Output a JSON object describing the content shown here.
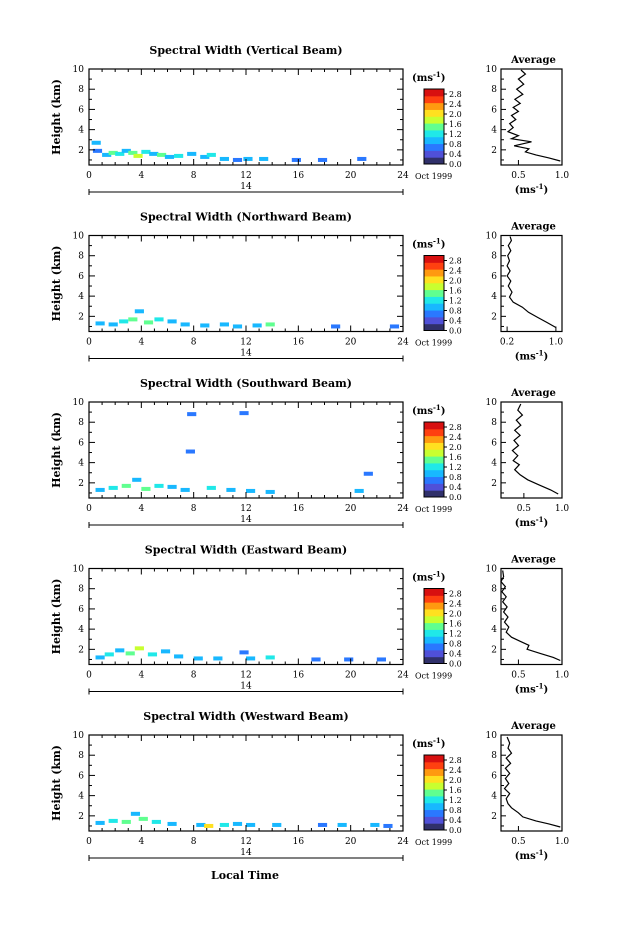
{
  "figure": {
    "xlabel_bottom": "Local Time",
    "date_label": "Oct 1999",
    "day_label": "14",
    "units_label": "(ms",
    "units_exp": "-1",
    "units_close": ")",
    "ylabel": "Height (km)",
    "avg_title": "Average",
    "colorbar_ticks": [
      "0.0",
      "0.4",
      "0.8",
      "1.2",
      "1.6",
      "2.0",
      "2.4",
      "2.8"
    ],
    "colorbar_colors": [
      "#30306a",
      "#5050d8",
      "#2a78ff",
      "#18b8ff",
      "#20e8e8",
      "#60ff90",
      "#c8ff30",
      "#ffe020",
      "#ff9a10",
      "#ff4010",
      "#d81010"
    ]
  },
  "chart_data": [
    {
      "type": "heatmap",
      "title": "Spectral Width (Vertical Beam)",
      "xlabel": "Local Time",
      "ylabel": "Height (km)",
      "xlim": [
        0,
        24
      ],
      "ylim": [
        0.5,
        10
      ],
      "xticks": [
        0,
        4,
        8,
        12,
        16,
        20,
        24
      ],
      "yticks": [
        2,
        4,
        6,
        8,
        10
      ],
      "value_range": [
        0.0,
        2.8
      ],
      "cells": [
        {
          "t": 0.2,
          "h": 2.6,
          "v": 0.8
        },
        {
          "t": 0.3,
          "h": 1.8,
          "v": 0.7
        },
        {
          "t": 1.0,
          "h": 1.4,
          "v": 1.0
        },
        {
          "t": 1.5,
          "h": 1.6,
          "v": 1.3
        },
        {
          "t": 2.0,
          "h": 1.5,
          "v": 1.1
        },
        {
          "t": 2.5,
          "h": 1.8,
          "v": 0.9
        },
        {
          "t": 3.0,
          "h": 1.6,
          "v": 1.4
        },
        {
          "t": 3.4,
          "h": 1.3,
          "v": 1.6
        },
        {
          "t": 4.0,
          "h": 1.7,
          "v": 1.2
        },
        {
          "t": 4.6,
          "h": 1.5,
          "v": 1.0
        },
        {
          "t": 5.2,
          "h": 1.4,
          "v": 1.5
        },
        {
          "t": 5.8,
          "h": 1.2,
          "v": 0.9
        },
        {
          "t": 6.5,
          "h": 1.3,
          "v": 1.1
        },
        {
          "t": 7.5,
          "h": 1.5,
          "v": 0.8
        },
        {
          "t": 8.5,
          "h": 1.2,
          "v": 0.9
        },
        {
          "t": 9.0,
          "h": 1.4,
          "v": 1.2
        },
        {
          "t": 10.0,
          "h": 1.0,
          "v": 1.0
        },
        {
          "t": 11.0,
          "h": 0.9,
          "v": 0.7
        },
        {
          "t": 11.8,
          "h": 1.0,
          "v": 0.9
        },
        {
          "t": 13.0,
          "h": 1.0,
          "v": 0.8
        },
        {
          "t": 15.5,
          "h": 0.9,
          "v": 0.6
        },
        {
          "t": 17.5,
          "h": 0.9,
          "v": 0.6
        },
        {
          "t": 20.5,
          "h": 1.0,
          "v": 0.7
        }
      ],
      "average": {
        "xlim": [
          0.3,
          1.0
        ],
        "xticks": [
          0.5,
          1.0
        ],
        "xlabel": "(ms-1)",
        "ylim": [
          0.5,
          10
        ],
        "profile": [
          [
            0.98,
            0.9
          ],
          [
            0.85,
            1.2
          ],
          [
            0.7,
            1.5
          ],
          [
            0.58,
            1.8
          ],
          [
            0.62,
            2.1
          ],
          [
            0.45,
            2.4
          ],
          [
            0.65,
            2.8
          ],
          [
            0.42,
            3.1
          ],
          [
            0.5,
            3.4
          ],
          [
            0.38,
            3.8
          ],
          [
            0.44,
            4.2
          ],
          [
            0.4,
            4.6
          ],
          [
            0.47,
            5.0
          ],
          [
            0.42,
            5.4
          ],
          [
            0.5,
            5.8
          ],
          [
            0.44,
            6.2
          ],
          [
            0.52,
            6.6
          ],
          [
            0.46,
            7.0
          ],
          [
            0.55,
            7.5
          ],
          [
            0.48,
            8.0
          ],
          [
            0.56,
            8.5
          ],
          [
            0.5,
            9.0
          ],
          [
            0.58,
            9.5
          ],
          [
            0.53,
            9.9
          ]
        ]
      }
    },
    {
      "type": "heatmap",
      "title": "Spectral Width (Northward Beam)",
      "xlabel": "Local Time",
      "ylabel": "Height (km)",
      "xlim": [
        0,
        24
      ],
      "ylim": [
        0.5,
        10
      ],
      "xticks": [
        0,
        4,
        8,
        12,
        16,
        20,
        24
      ],
      "yticks": [
        2,
        4,
        6,
        8,
        10
      ],
      "value_range": [
        0.0,
        2.8
      ],
      "cells": [
        {
          "t": 0.5,
          "h": 1.2,
          "v": 0.9
        },
        {
          "t": 1.5,
          "h": 1.1,
          "v": 1.0
        },
        {
          "t": 2.3,
          "h": 1.4,
          "v": 1.2
        },
        {
          "t": 3.0,
          "h": 1.6,
          "v": 1.5
        },
        {
          "t": 3.5,
          "h": 2.4,
          "v": 0.9
        },
        {
          "t": 4.2,
          "h": 1.3,
          "v": 1.3
        },
        {
          "t": 5.0,
          "h": 1.6,
          "v": 1.1
        },
        {
          "t": 6.0,
          "h": 1.4,
          "v": 0.9
        },
        {
          "t": 7.0,
          "h": 1.1,
          "v": 0.8
        },
        {
          "t": 8.5,
          "h": 1.0,
          "v": 0.9
        },
        {
          "t": 10.0,
          "h": 1.1,
          "v": 1.0
        },
        {
          "t": 11.0,
          "h": 0.9,
          "v": 0.8
        },
        {
          "t": 12.5,
          "h": 1.0,
          "v": 0.9
        },
        {
          "t": 13.5,
          "h": 1.1,
          "v": 1.3
        },
        {
          "t": 18.5,
          "h": 0.9,
          "v": 0.6
        },
        {
          "t": 23.0,
          "h": 0.9,
          "v": 0.6
        }
      ],
      "average": {
        "xlim": [
          0.1,
          1.1
        ],
        "xticks": [
          0.2,
          1.0
        ],
        "xlabel": "(ms-1)",
        "ylim": [
          0.5,
          10
        ],
        "profile": [
          [
            1.0,
            0.9
          ],
          [
            0.85,
            1.4
          ],
          [
            0.7,
            1.9
          ],
          [
            0.55,
            2.4
          ],
          [
            0.45,
            2.9
          ],
          [
            0.3,
            3.4
          ],
          [
            0.24,
            3.9
          ],
          [
            0.28,
            4.4
          ],
          [
            0.22,
            5.0
          ],
          [
            0.26,
            5.5
          ],
          [
            0.2,
            6.0
          ],
          [
            0.25,
            6.5
          ],
          [
            0.2,
            7.0
          ],
          [
            0.24,
            7.5
          ],
          [
            0.21,
            8.0
          ],
          [
            0.26,
            8.5
          ],
          [
            0.22,
            9.0
          ],
          [
            0.27,
            9.5
          ],
          [
            0.25,
            9.9
          ]
        ]
      }
    },
    {
      "type": "heatmap",
      "title": "Spectral Width (Southward Beam)",
      "xlabel": "Local Time",
      "ylabel": "Height (km)",
      "xlim": [
        0,
        24
      ],
      "ylim": [
        0.5,
        10
      ],
      "xticks": [
        0,
        4,
        8,
        12,
        16,
        20,
        24
      ],
      "yticks": [
        2,
        4,
        6,
        8,
        10
      ],
      "value_range": [
        0.0,
        2.8
      ],
      "cells": [
        {
          "t": 0.5,
          "h": 1.2,
          "v": 0.9
        },
        {
          "t": 1.5,
          "h": 1.4,
          "v": 1.1
        },
        {
          "t": 2.5,
          "h": 1.6,
          "v": 1.3
        },
        {
          "t": 3.3,
          "h": 2.2,
          "v": 1.0
        },
        {
          "t": 4.0,
          "h": 1.3,
          "v": 1.5
        },
        {
          "t": 5.0,
          "h": 1.6,
          "v": 1.2
        },
        {
          "t": 6.0,
          "h": 1.5,
          "v": 1.0
        },
        {
          "t": 7.0,
          "h": 1.2,
          "v": 0.9
        },
        {
          "t": 7.5,
          "h": 8.7,
          "v": 0.7
        },
        {
          "t": 7.4,
          "h": 5.0,
          "v": 0.6
        },
        {
          "t": 9.0,
          "h": 1.4,
          "v": 1.1
        },
        {
          "t": 10.5,
          "h": 1.2,
          "v": 0.9
        },
        {
          "t": 11.5,
          "h": 8.8,
          "v": 0.7
        },
        {
          "t": 12.0,
          "h": 1.1,
          "v": 1.0
        },
        {
          "t": 13.5,
          "h": 1.0,
          "v": 0.8
        },
        {
          "t": 20.3,
          "h": 1.1,
          "v": 0.9
        },
        {
          "t": 21.0,
          "h": 2.8,
          "v": 0.6
        }
      ],
      "average": {
        "xlim": [
          0.2,
          1.0
        ],
        "xticks": [
          0.5,
          1.0
        ],
        "xlabel": "(ms-1)",
        "ylim": [
          0.5,
          10
        ],
        "profile": [
          [
            0.95,
            0.9
          ],
          [
            0.85,
            1.3
          ],
          [
            0.7,
            1.8
          ],
          [
            0.55,
            2.3
          ],
          [
            0.45,
            2.8
          ],
          [
            0.38,
            3.3
          ],
          [
            0.44,
            3.8
          ],
          [
            0.36,
            4.2
          ],
          [
            0.42,
            4.7
          ],
          [
            0.35,
            5.2
          ],
          [
            0.43,
            5.7
          ],
          [
            0.37,
            6.2
          ],
          [
            0.45,
            6.7
          ],
          [
            0.38,
            7.2
          ],
          [
            0.46,
            7.7
          ],
          [
            0.4,
            8.2
          ],
          [
            0.48,
            8.7
          ],
          [
            0.42,
            9.2
          ],
          [
            0.46,
            9.8
          ]
        ]
      }
    },
    {
      "type": "heatmap",
      "title": "Spectral Width (Eastward Beam)",
      "xlabel": "Local Time",
      "ylabel": "Height (km)",
      "xlim": [
        0,
        24
      ],
      "ylim": [
        0.5,
        10
      ],
      "xticks": [
        0,
        4,
        8,
        12,
        16,
        20,
        24
      ],
      "yticks": [
        2,
        4,
        6,
        8,
        10
      ],
      "value_range": [
        0.0,
        2.8
      ],
      "cells": [
        {
          "t": 0.5,
          "h": 1.1,
          "v": 0.9
        },
        {
          "t": 1.2,
          "h": 1.4,
          "v": 1.2
        },
        {
          "t": 2.0,
          "h": 1.8,
          "v": 1.0
        },
        {
          "t": 2.8,
          "h": 1.5,
          "v": 1.4
        },
        {
          "t": 3.5,
          "h": 2.0,
          "v": 1.6
        },
        {
          "t": 4.5,
          "h": 1.4,
          "v": 1.1
        },
        {
          "t": 5.5,
          "h": 1.7,
          "v": 0.9
        },
        {
          "t": 6.5,
          "h": 1.2,
          "v": 1.0
        },
        {
          "t": 8.0,
          "h": 1.0,
          "v": 0.8
        },
        {
          "t": 9.5,
          "h": 1.0,
          "v": 0.9
        },
        {
          "t": 11.5,
          "h": 1.6,
          "v": 0.6
        },
        {
          "t": 12.0,
          "h": 1.0,
          "v": 1.0
        },
        {
          "t": 13.5,
          "h": 1.1,
          "v": 1.2
        },
        {
          "t": 17.0,
          "h": 0.9,
          "v": 0.7
        },
        {
          "t": 19.5,
          "h": 0.9,
          "v": 0.7
        },
        {
          "t": 22.0,
          "h": 0.9,
          "v": 0.7
        }
      ],
      "average": {
        "xlim": [
          0.3,
          1.0
        ],
        "xticks": [
          0.5,
          1.0
        ],
        "xlabel": "(ms-1)",
        "ylim": [
          0.5,
          10
        ],
        "profile": [
          [
            0.98,
            0.9
          ],
          [
            0.9,
            1.2
          ],
          [
            0.75,
            1.6
          ],
          [
            0.6,
            2.0
          ],
          [
            0.62,
            2.4
          ],
          [
            0.52,
            2.8
          ],
          [
            0.42,
            3.2
          ],
          [
            0.36,
            3.7
          ],
          [
            0.39,
            4.2
          ],
          [
            0.34,
            4.7
          ],
          [
            0.38,
            5.2
          ],
          [
            0.33,
            5.7
          ],
          [
            0.37,
            6.2
          ],
          [
            0.32,
            6.7
          ],
          [
            0.36,
            7.2
          ],
          [
            0.31,
            7.7
          ],
          [
            0.35,
            8.2
          ],
          [
            0.3,
            8.7
          ],
          [
            0.33,
            9.2
          ],
          [
            0.32,
            9.8
          ]
        ]
      }
    },
    {
      "type": "heatmap",
      "title": "Spectral Width (Westward Beam)",
      "xlabel": "Local Time",
      "ylabel": "Height (km)",
      "xlim": [
        0,
        24
      ],
      "ylim": [
        0.5,
        10
      ],
      "xticks": [
        0,
        4,
        8,
        12,
        16,
        20,
        24
      ],
      "yticks": [
        2,
        4,
        6,
        8,
        10
      ],
      "value_range": [
        0.0,
        2.8
      ],
      "cells": [
        {
          "t": 0.5,
          "h": 1.2,
          "v": 0.9
        },
        {
          "t": 1.5,
          "h": 1.4,
          "v": 1.1
        },
        {
          "t": 2.5,
          "h": 1.3,
          "v": 1.3
        },
        {
          "t": 3.2,
          "h": 2.1,
          "v": 1.0
        },
        {
          "t": 3.8,
          "h": 1.6,
          "v": 1.5
        },
        {
          "t": 4.8,
          "h": 1.3,
          "v": 1.2
        },
        {
          "t": 6.0,
          "h": 1.1,
          "v": 0.9
        },
        {
          "t": 8.2,
          "h": 1.0,
          "v": 1.0
        },
        {
          "t": 8.8,
          "h": 0.9,
          "v": 1.8
        },
        {
          "t": 10.0,
          "h": 1.0,
          "v": 1.1
        },
        {
          "t": 11.0,
          "h": 1.1,
          "v": 0.9
        },
        {
          "t": 12.0,
          "h": 1.0,
          "v": 1.0
        },
        {
          "t": 14.0,
          "h": 1.0,
          "v": 0.8
        },
        {
          "t": 17.5,
          "h": 1.0,
          "v": 0.7
        },
        {
          "t": 19.0,
          "h": 1.0,
          "v": 0.8
        },
        {
          "t": 21.5,
          "h": 1.0,
          "v": 0.8
        },
        {
          "t": 22.5,
          "h": 0.9,
          "v": 0.7
        }
      ],
      "average": {
        "xlim": [
          0.3,
          1.0
        ],
        "xticks": [
          0.5,
          1.0
        ],
        "xlabel": "(ms-1)",
        "ylim": [
          0.5,
          10
        ],
        "profile": [
          [
            0.98,
            0.9
          ],
          [
            0.85,
            1.2
          ],
          [
            0.7,
            1.5
          ],
          [
            0.55,
            1.9
          ],
          [
            0.5,
            2.3
          ],
          [
            0.42,
            2.8
          ],
          [
            0.38,
            3.2
          ],
          [
            0.36,
            3.7
          ],
          [
            0.4,
            4.2
          ],
          [
            0.34,
            4.7
          ],
          [
            0.39,
            5.2
          ],
          [
            0.35,
            5.7
          ],
          [
            0.4,
            6.2
          ],
          [
            0.35,
            6.7
          ],
          [
            0.41,
            7.2
          ],
          [
            0.36,
            7.7
          ],
          [
            0.42,
            8.2
          ],
          [
            0.38,
            8.7
          ],
          [
            0.4,
            9.2
          ],
          [
            0.37,
            9.8
          ]
        ]
      }
    }
  ]
}
